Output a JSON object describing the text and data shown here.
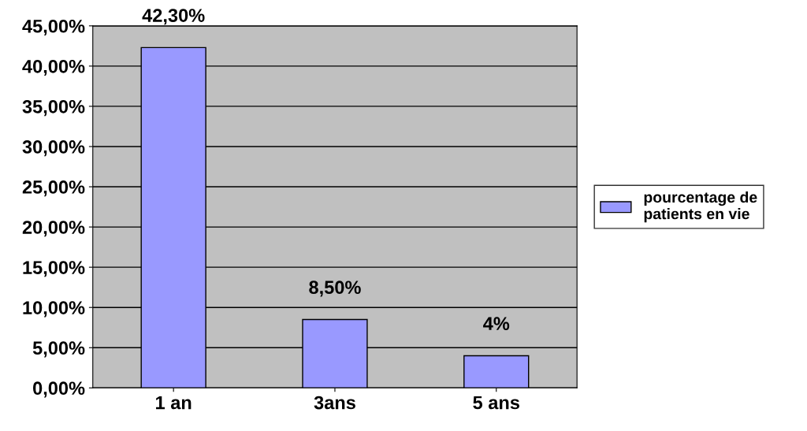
{
  "chart_data": {
    "type": "bar",
    "categories": [
      "1 an",
      "3ans",
      "5 ans"
    ],
    "series": [
      {
        "name": "pourcentage de\npatients en vie",
        "color": "#9999ff",
        "values": [
          42.3,
          8.5,
          4
        ],
        "value_labels": [
          "42,30%",
          "8,50%",
          "4%"
        ]
      }
    ],
    "ylim": [
      0,
      45
    ],
    "yticks": [
      {
        "value": 0,
        "label": "0,00%"
      },
      {
        "value": 5,
        "label": "5,00%"
      },
      {
        "value": 10,
        "label": "10,00%"
      },
      {
        "value": 15,
        "label": "15,00%"
      },
      {
        "value": 20,
        "label": "20,00%"
      },
      {
        "value": 25,
        "label": "25,00%"
      },
      {
        "value": 30,
        "label": "30,00%"
      },
      {
        "value": 35,
        "label": "35,00%"
      },
      {
        "value": 40,
        "label": "40,00%"
      },
      {
        "value": 45,
        "label": "45,00%"
      }
    ],
    "grid": "y",
    "legend": "right"
  }
}
